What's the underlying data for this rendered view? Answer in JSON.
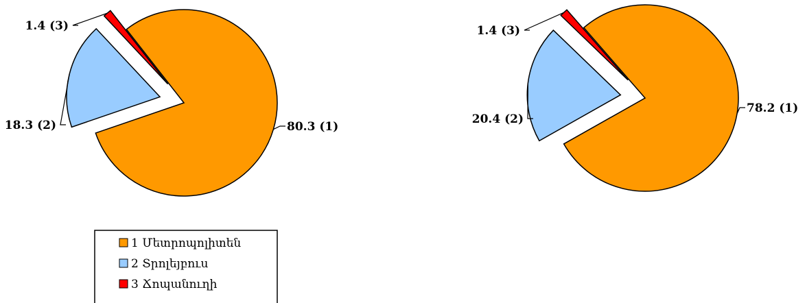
{
  "chart_data": [
    {
      "type": "pie",
      "categories": [
        "1 Մետրոպոլիտեն",
        "2 Տրոլեյբուս",
        "3 Ճոպանուղի"
      ],
      "values": [
        80.3,
        18.3,
        1.4
      ],
      "data_labels": [
        "80.3 (1)",
        "18.3 (2)",
        "1.4 (3)"
      ],
      "colors": [
        "#FF9900",
        "#99CCFF",
        "#FF0000"
      ],
      "exploded": true
    },
    {
      "type": "pie",
      "categories": [
        "1 Մետրոպոլիտեն",
        "2 Տրոլեյբուս",
        "3 Ճոպանուղի"
      ],
      "values": [
        78.2,
        20.4,
        1.4
      ],
      "data_labels": [
        "78.2 (1)",
        "20.4 (2)",
        "1.4 (3)"
      ],
      "colors": [
        "#FF9900",
        "#99CCFF",
        "#FF0000"
      ],
      "exploded": true
    }
  ],
  "legend": {
    "placement": "bottom-left",
    "items": [
      {
        "label": "1 Մետրոպոլիտեն",
        "color": "#FF9900"
      },
      {
        "label": "2 Տրոլեյբուս",
        "color": "#99CCFF"
      },
      {
        "label": "3 Ճոպանուղի",
        "color": "#FF0000"
      }
    ]
  }
}
